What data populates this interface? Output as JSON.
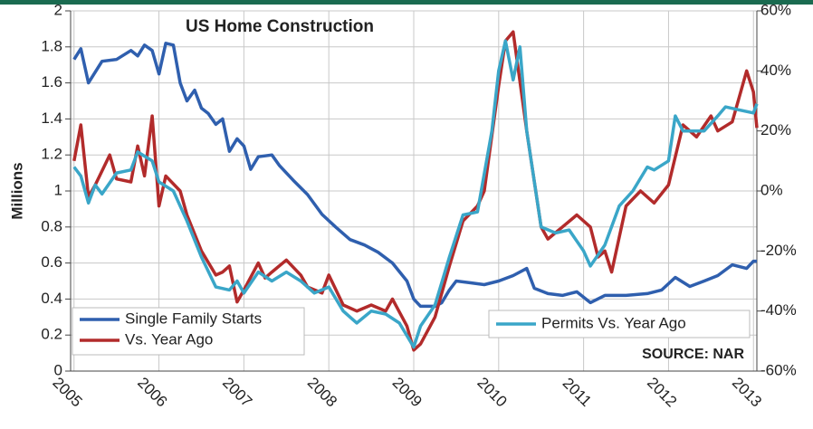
{
  "chart_data": {
    "type": "line",
    "title": "US Home Construction",
    "y_label": "Millions",
    "source": "SOURCE: NAR",
    "xlim": [
      2004.96,
      2013.04
    ],
    "xticks": [
      2005,
      2006,
      2007,
      2008,
      2009,
      2010,
      2011,
      2012,
      2013
    ],
    "ylim": [
      0,
      2
    ],
    "yticks": [
      0,
      0.2,
      0.4,
      0.6,
      0.8,
      1,
      1.2,
      1.4,
      1.6,
      1.8,
      2
    ],
    "y2lim": [
      -60,
      60
    ],
    "y2ticks": [
      {
        "value": -60,
        "label": "-60%"
      },
      {
        "value": -40,
        "label": "-40%"
      },
      {
        "value": -20,
        "label": "-20%"
      },
      {
        "value": 0,
        "label": "0%"
      },
      {
        "value": 20,
        "label": "20%"
      },
      {
        "value": 40,
        "label": "40%"
      },
      {
        "value": 60,
        "label": "60%"
      }
    ],
    "grid": true,
    "series": [
      {
        "name": "Single Family Starts",
        "color": "#2f5fae",
        "x": [
          2005.0,
          2005.08,
          2005.17,
          2005.33,
          2005.5,
          2005.67,
          2005.75,
          2005.83,
          2005.92,
          2006.0,
          2006.08,
          2006.17,
          2006.25,
          2006.33,
          2006.42,
          2006.5,
          2006.58,
          2006.67,
          2006.75,
          2006.83,
          2006.92,
          2007.0,
          2007.08,
          2007.17,
          2007.33,
          2007.42,
          2007.58,
          2007.75,
          2007.92,
          2008.08,
          2008.25,
          2008.42,
          2008.58,
          2008.75,
          2008.92,
          2009.0,
          2009.08,
          2009.25,
          2009.33,
          2009.42,
          2009.5,
          2009.67,
          2009.83,
          2010.0,
          2010.17,
          2010.33,
          2010.42,
          2010.58,
          2010.75,
          2010.92,
          2011.08,
          2011.25,
          2011.5,
          2011.75,
          2011.92,
          2012.08,
          2012.25,
          2012.42,
          2012.58,
          2012.75,
          2012.92,
          2013.0,
          2013.04
        ],
        "values": [
          1.73,
          1.79,
          1.6,
          1.72,
          1.73,
          1.78,
          1.75,
          1.81,
          1.78,
          1.65,
          1.82,
          1.81,
          1.6,
          1.5,
          1.56,
          1.46,
          1.43,
          1.37,
          1.4,
          1.22,
          1.29,
          1.25,
          1.12,
          1.19,
          1.2,
          1.14,
          1.06,
          0.98,
          0.87,
          0.8,
          0.73,
          0.7,
          0.66,
          0.6,
          0.5,
          0.4,
          0.36,
          0.36,
          0.38,
          0.45,
          0.5,
          0.49,
          0.48,
          0.5,
          0.53,
          0.57,
          0.46,
          0.43,
          0.42,
          0.44,
          0.38,
          0.42,
          0.42,
          0.43,
          0.45,
          0.52,
          0.47,
          0.5,
          0.53,
          0.59,
          0.57,
          0.61,
          0.61
        ]
      },
      {
        "name": "Vs. Year Ago",
        "color": "#b22b2b",
        "axis": "y2",
        "x": [
          2005.0,
          2005.08,
          2005.17,
          2005.25,
          2005.42,
          2005.5,
          2005.67,
          2005.75,
          2005.83,
          2005.92,
          2006.0,
          2006.08,
          2006.25,
          2006.33,
          2006.5,
          2006.67,
          2006.75,
          2006.83,
          2006.92,
          2007.0,
          2007.17,
          2007.25,
          2007.33,
          2007.5,
          2007.67,
          2007.75,
          2007.92,
          2008.0,
          2008.17,
          2008.33,
          2008.5,
          2008.67,
          2008.75,
          2008.92,
          2009.0,
          2009.08,
          2009.25,
          2009.42,
          2009.58,
          2009.75,
          2009.83,
          2010.0,
          2010.08,
          2010.17,
          2010.33,
          2010.5,
          2010.58,
          2010.75,
          2010.92,
          2011.08,
          2011.17,
          2011.25,
          2011.33,
          2011.5,
          2011.67,
          2011.83,
          2012.0,
          2012.17,
          2012.33,
          2012.5,
          2012.58,
          2012.75,
          2012.92,
          2013.0,
          2013.04
        ],
        "values": [
          10,
          22,
          -2,
          2,
          12,
          4,
          3,
          15,
          5,
          25,
          -5,
          5,
          0,
          -8,
          -20,
          -28,
          -27,
          -25,
          -37,
          -33,
          -24,
          -29,
          -27,
          -23,
          -28,
          -32,
          -34,
          -28,
          -38,
          -40,
          -38,
          -40,
          -36,
          -45,
          -53,
          -51,
          -42,
          -25,
          -10,
          -5,
          0,
          35,
          50,
          53,
          20,
          -12,
          -16,
          -12,
          -8,
          -12,
          -22,
          -20,
          -27,
          -5,
          0,
          -4,
          2,
          22,
          18,
          25,
          20,
          23,
          40,
          33,
          21
        ]
      },
      {
        "name": "Permits Vs. Year Ago",
        "color": "#3aa6c8",
        "axis": "y2",
        "x": [
          2005.0,
          2005.08,
          2005.17,
          2005.25,
          2005.33,
          2005.5,
          2005.67,
          2005.75,
          2005.92,
          2006.0,
          2006.17,
          2006.33,
          2006.5,
          2006.67,
          2006.83,
          2006.92,
          2007.0,
          2007.17,
          2007.33,
          2007.5,
          2007.67,
          2007.83,
          2008.0,
          2008.17,
          2008.33,
          2008.5,
          2008.67,
          2008.83,
          2009.0,
          2009.08,
          2009.25,
          2009.42,
          2009.58,
          2009.75,
          2009.92,
          2010.0,
          2010.08,
          2010.17,
          2010.25,
          2010.33,
          2010.5,
          2010.67,
          2010.83,
          2011.0,
          2011.08,
          2011.25,
          2011.42,
          2011.58,
          2011.75,
          2011.83,
          2012.0,
          2012.08,
          2012.17,
          2012.42,
          2012.58,
          2012.67,
          2012.83,
          2013.0,
          2013.04
        ],
        "values": [
          8,
          5,
          -4,
          2,
          -1,
          6,
          7,
          13,
          10,
          3,
          0,
          -10,
          -22,
          -32,
          -33,
          -30,
          -34,
          -27,
          -30,
          -27,
          -30,
          -34,
          -32,
          -40,
          -44,
          -40,
          -41,
          -44,
          -52,
          -45,
          -38,
          -22,
          -8,
          -7,
          20,
          40,
          50,
          37,
          48,
          20,
          -12,
          -14,
          -13,
          -20,
          -25,
          -18,
          -5,
          0,
          8,
          7,
          10,
          25,
          20,
          20,
          25,
          28,
          27,
          26,
          29
        ]
      }
    ]
  }
}
